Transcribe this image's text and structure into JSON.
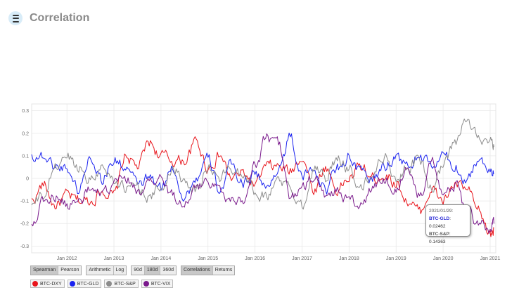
{
  "header": {
    "title": "Correlation",
    "icon": "database-icon"
  },
  "controls": {
    "method": [
      "Spearman",
      "Pearson"
    ],
    "scale": [
      "Arithmetic",
      "Log"
    ],
    "window": [
      "90d",
      "180d",
      "360d"
    ],
    "view": [
      "Correlations",
      "Returns"
    ]
  },
  "legend": [
    {
      "label": "BTC-DXY",
      "color": "#e8141b"
    },
    {
      "label": "BTC-GLD",
      "color": "#1a22f0"
    },
    {
      "label": "BTC-S&P",
      "color": "#8c8c8c"
    },
    {
      "label": "BTC-VIX",
      "color": "#7a1a8c"
    }
  ],
  "tooltip": {
    "date": "2021/01/29:",
    "gld_label": "BTC-GLD",
    "gld_value": ": 0.02462",
    "sp_label": "BTC-S&P",
    "sp_value": ": 0.14363"
  },
  "chart_data": {
    "type": "line",
    "x_range": [
      "2011-04-01",
      "2021-02-15"
    ],
    "x_ticks": [
      "Jan 2012",
      "Jan 2013",
      "Jan 2014",
      "Jan 2015",
      "Jan 2016",
      "Jan 2017",
      "Jan 2018",
      "Jan 2019",
      "Jan 2020",
      "Jan 2021"
    ],
    "y_ticks": [
      "0.3",
      "0.2",
      "0.1",
      "0",
      "-0.1",
      "-0.2",
      "-0.3"
    ],
    "ylim": [
      -0.33,
      0.33
    ],
    "grid": true,
    "x": [
      2011.25,
      2011.5,
      2011.75,
      2012.0,
      2012.25,
      2012.5,
      2012.75,
      2013.0,
      2013.25,
      2013.5,
      2013.75,
      2014.0,
      2014.25,
      2014.5,
      2014.75,
      2015.0,
      2015.25,
      2015.5,
      2015.75,
      2016.0,
      2016.25,
      2016.5,
      2016.75,
      2017.0,
      2017.25,
      2017.5,
      2017.75,
      2018.0,
      2018.25,
      2018.5,
      2018.75,
      2019.0,
      2019.25,
      2019.5,
      2019.75,
      2020.0,
      2020.25,
      2020.5,
      2020.75,
      2021.0,
      2021.08
    ],
    "series": [
      {
        "name": "BTC-DXY",
        "color": "#e8141b",
        "values": [
          -0.1,
          -0.03,
          -0.12,
          -0.08,
          -0.1,
          -0.1,
          -0.05,
          -0.08,
          0.1,
          0.05,
          0.16,
          0.1,
          0.08,
          0.08,
          0.16,
          0.05,
          0.1,
          0.0,
          0.02,
          -0.03,
          0.05,
          0.05,
          0.03,
          0.1,
          -0.05,
          0.05,
          -0.05,
          0.0,
          0.05,
          0.0,
          0.02,
          -0.02,
          -0.1,
          -0.15,
          -0.05,
          -0.1,
          -0.03,
          -0.05,
          -0.15,
          -0.25,
          -0.22
        ]
      },
      {
        "name": "BTC-GLD",
        "color": "#1a22f0",
        "values": [
          0.1,
          0.1,
          0.05,
          0.05,
          -0.05,
          0.1,
          0.0,
          0.08,
          0.05,
          -0.03,
          0.0,
          -0.05,
          0.05,
          -0.08,
          0.0,
          0.08,
          -0.05,
          0.05,
          -0.02,
          0.03,
          -0.05,
          0.05,
          0.18,
          0.0,
          0.05,
          -0.05,
          0.05,
          0.1,
          0.02,
          0.0,
          0.05,
          0.1,
          0.05,
          0.1,
          0.05,
          0.1,
          0.05,
          0.0,
          0.08,
          0.05,
          0.02
        ]
      },
      {
        "name": "BTC-S&P",
        "color": "#8c8c8c",
        "values": [
          -0.12,
          -0.08,
          0.05,
          0.1,
          0.05,
          0.0,
          0.05,
          0.0,
          -0.05,
          -0.03,
          -0.08,
          -0.05,
          0.05,
          0.0,
          -0.05,
          0.05,
          0.0,
          0.05,
          0.03,
          -0.05,
          -0.08,
          0.0,
          -0.05,
          -0.12,
          0.05,
          0.0,
          0.08,
          0.05,
          -0.05,
          0.02,
          0.1,
          0.0,
          0.05,
          0.08,
          -0.05,
          0.05,
          0.15,
          0.25,
          0.2,
          0.15,
          0.14
        ]
      },
      {
        "name": "BTC-VIX",
        "color": "#7a1a8c",
        "values": [
          -0.2,
          -0.1,
          -0.08,
          -0.12,
          -0.1,
          -0.05,
          -0.08,
          -0.03,
          0.0,
          -0.05,
          -0.03,
          0.0,
          -0.08,
          -0.1,
          -0.05,
          0.0,
          -0.05,
          -0.1,
          -0.08,
          0.05,
          0.18,
          0.15,
          -0.08,
          -0.05,
          0.0,
          -0.08,
          -0.05,
          -0.1,
          -0.12,
          -0.05,
          0.0,
          -0.05,
          0.05,
          -0.08,
          0.1,
          -0.05,
          -0.03,
          -0.15,
          -0.2,
          -0.22,
          -0.2
        ]
      }
    ]
  }
}
